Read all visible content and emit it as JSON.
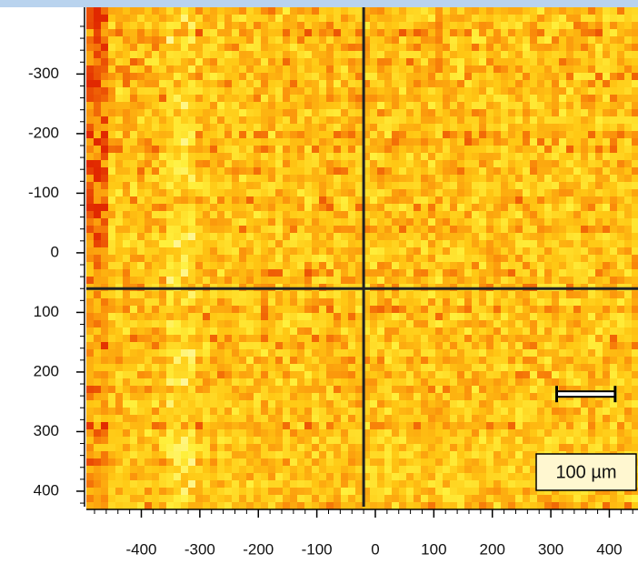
{
  "chart_data": {
    "type": "heatmap",
    "xlim": [
      -494,
      449
    ],
    "ylim": [
      -412,
      426
    ],
    "xticks": [
      -400,
      -300,
      -200,
      -100,
      0,
      100,
      200,
      300,
      400
    ],
    "yticks": [
      -300,
      -200,
      -100,
      0,
      100,
      200,
      300,
      400
    ],
    "crosshair": {
      "x": -20,
      "y": 60
    },
    "scale_bar": {
      "length": 100,
      "x": 310,
      "y": 237,
      "label": "100 µm"
    }
  }
}
